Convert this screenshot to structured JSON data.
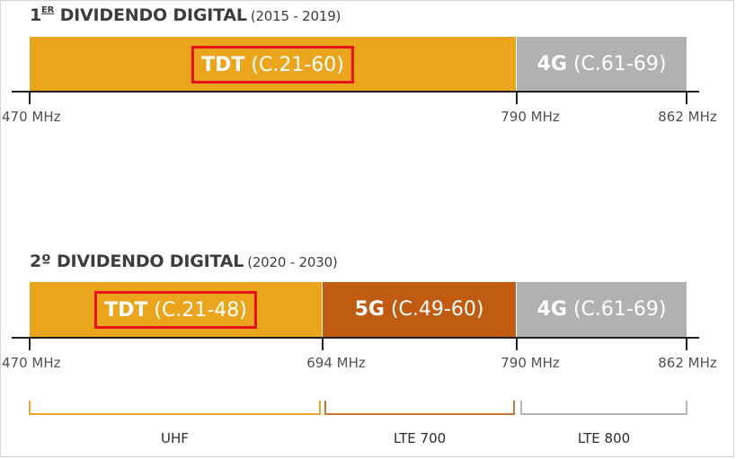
{
  "colors": {
    "tdt": "#eaa51c",
    "g5": "#c05c12",
    "g4": "#b1b1b1",
    "highlight": "#e8121a",
    "uhf_bracket": "#e8a531",
    "lte700_bracket": "#c77436",
    "lte800_bracket": "#b5b5b5"
  },
  "section1": {
    "title_main": "1",
    "title_sup": "ER",
    "title_rest": "DIVIDENDO DIGITAL",
    "years": "(2015 - 2019)",
    "tdt_bold": "TDT",
    "tdt_channels": "(C.21-60)",
    "g4_bold": "4G",
    "g4_channels": "(C.61-69)",
    "ticks": [
      "470 MHz",
      "790 MHz",
      "862 MHz"
    ]
  },
  "section2": {
    "title_main": "2º",
    "title_rest": "DIVIDENDO DIGITAL",
    "years": "(2020 - 2030)",
    "tdt_bold": "TDT",
    "tdt_channels": "(C.21-48)",
    "g5_bold": "5G",
    "g5_channels": "(C.49-60)",
    "g4_bold": "4G",
    "g4_channels": "(C.61-69)",
    "ticks": [
      "470 MHz",
      "694 MHz",
      "790 MHz",
      "862 MHz"
    ]
  },
  "bands": [
    "UHF",
    "LTE 700",
    "LTE 800"
  ]
}
